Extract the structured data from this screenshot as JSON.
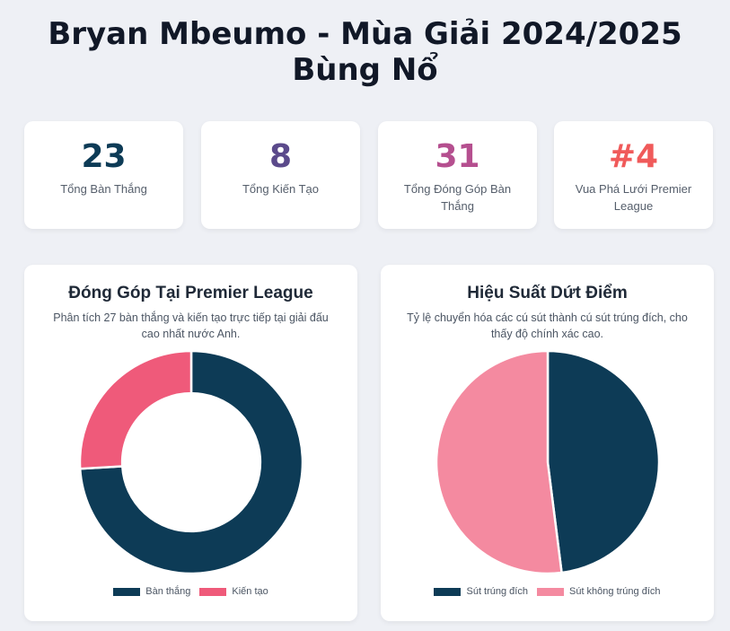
{
  "header": {
    "title_line1": "Bryan Mbeumo - Mùa Giải 2024/2025",
    "title_line2": "Bùng Nổ"
  },
  "stats": [
    {
      "value": "23",
      "label": "Tổng Bàn Thắng",
      "color": "#0d3b56"
    },
    {
      "value": "8",
      "label": "Tổng Kiến Tạo",
      "color": "#5b4a8b"
    },
    {
      "value": "31",
      "label": "Tổng Đóng Góp Bàn Thắng",
      "color": "#b54f8f"
    },
    {
      "value": "#4",
      "label": "Vua Phá Lưới Premier League",
      "color": "#f05a5a"
    }
  ],
  "chart_data": [
    {
      "type": "pie",
      "donut": true,
      "title": "Đóng Góp Tại Premier League",
      "subtitle": "Phân tích 27 bàn thắng và kiến tạo trực tiếp tại giải đấu cao nhất nước Anh.",
      "categories": [
        "Bàn thắng",
        "Kiến tạo"
      ],
      "values": [
        20,
        7
      ],
      "colors": [
        "#0d3b56",
        "#ef5a7a"
      ],
      "legend": "bottom"
    },
    {
      "type": "pie",
      "donut": false,
      "title": "Hiệu Suất Dứt Điểm",
      "subtitle": "Tỷ lệ chuyển hóa các cú sút thành cú sút trúng đích, cho thấy độ chính xác cao.",
      "categories": [
        "Sút trúng đích",
        "Sút không trúng đích"
      ],
      "values": [
        48,
        52
      ],
      "colors": [
        "#0d3b56",
        "#f48aa0"
      ],
      "legend": "bottom"
    }
  ]
}
